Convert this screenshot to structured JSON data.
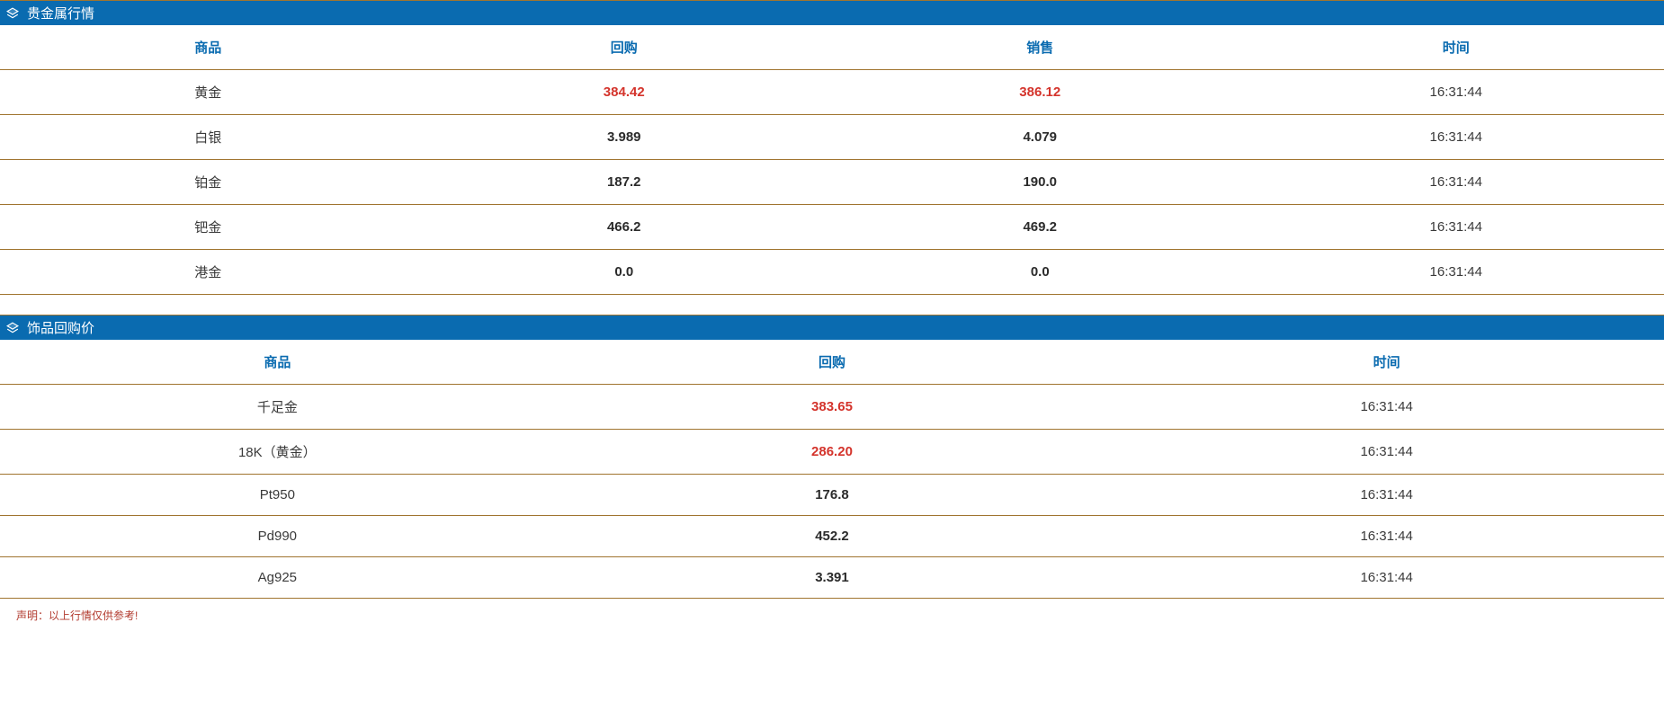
{
  "colors": {
    "header_bg": "#0a6bb0",
    "header_text": "#ffffff",
    "row_border": "#a0742f",
    "th_text": "#0a6bb0",
    "cell_text": "#3a3a3a",
    "highlight_text": "#d4342c",
    "footer_text": "#b23a2e"
  },
  "section1": {
    "title": "贵金属行情",
    "columns": [
      "商品",
      "回购",
      "销售",
      "时间"
    ],
    "rows": [
      {
        "name": "黄金",
        "buy": "384.42",
        "sell": "386.12",
        "time": "16:31:44",
        "highlight": true
      },
      {
        "name": "白银",
        "buy": "3.989",
        "sell": "4.079",
        "time": "16:31:44",
        "highlight": false
      },
      {
        "name": "铂金",
        "buy": "187.2",
        "sell": "190.0",
        "time": "16:31:44",
        "highlight": false
      },
      {
        "name": "钯金",
        "buy": "466.2",
        "sell": "469.2",
        "time": "16:31:44",
        "highlight": false
      },
      {
        "name": "港金",
        "buy": "0.0",
        "sell": "0.0",
        "time": "16:31:44",
        "highlight": false
      }
    ]
  },
  "section2": {
    "title": "饰品回购价",
    "columns": [
      "商品",
      "回购",
      "时间"
    ],
    "rows": [
      {
        "name": "千足金",
        "buy": "383.65",
        "time": "16:31:44",
        "highlight": true
      },
      {
        "name": "18K（黄金）",
        "buy": "286.20",
        "time": "16:31:44",
        "highlight": true
      },
      {
        "name": "Pt950",
        "buy": "176.8",
        "time": "16:31:44",
        "highlight": false
      },
      {
        "name": "Pd990",
        "buy": "452.2",
        "time": "16:31:44",
        "highlight": false
      },
      {
        "name": "Ag925",
        "buy": "3.391",
        "time": "16:31:44",
        "highlight": false
      }
    ]
  },
  "footer": {
    "note": "声明：以上行情仅供参考!"
  }
}
